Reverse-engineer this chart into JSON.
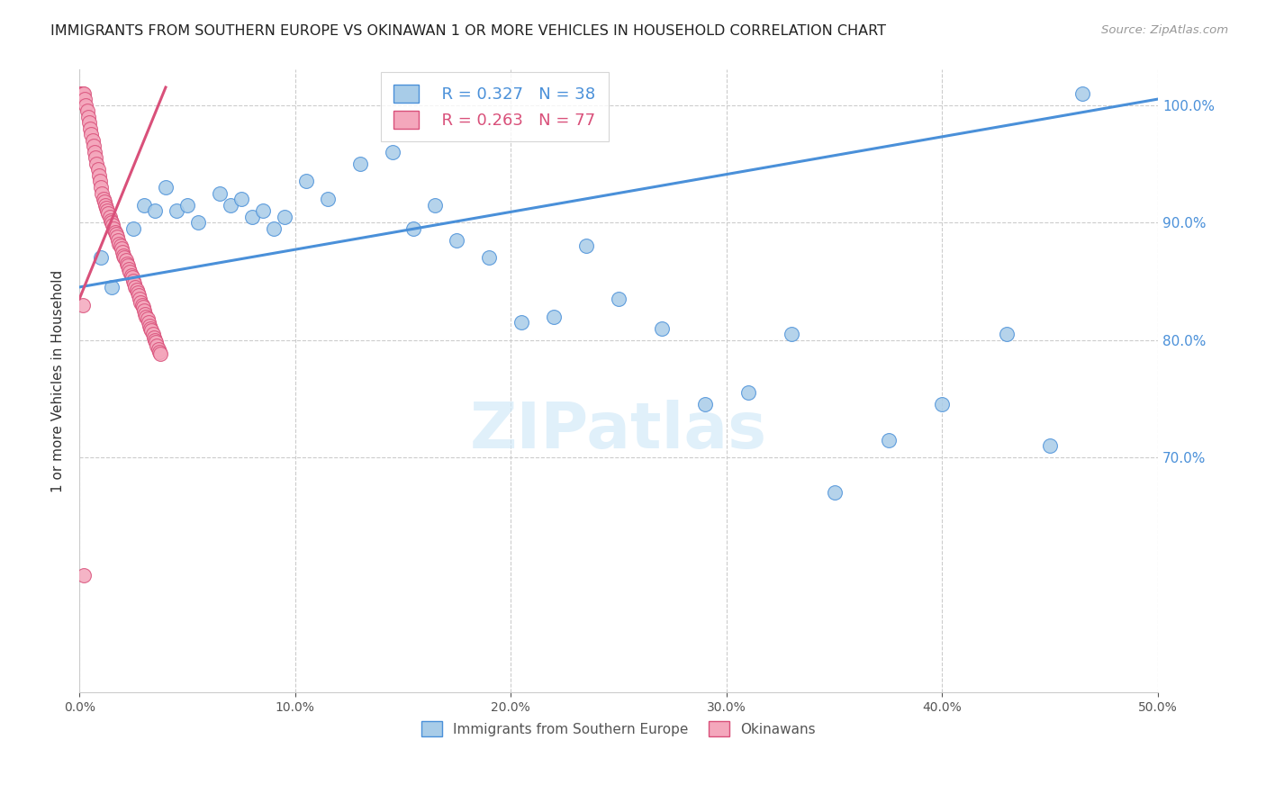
{
  "title": "IMMIGRANTS FROM SOUTHERN EUROPE VS OKINAWAN 1 OR MORE VEHICLES IN HOUSEHOLD CORRELATION CHART",
  "source": "Source: ZipAtlas.com",
  "ylabel": "1 or more Vehicles in Household",
  "x_min": 0.0,
  "x_max": 50.0,
  "y_min": 50.0,
  "y_max": 103.0,
  "y_ticks": [
    70.0,
    80.0,
    90.0,
    100.0
  ],
  "x_ticks": [
    0.0,
    10.0,
    20.0,
    30.0,
    40.0,
    50.0
  ],
  "blue_R": 0.327,
  "blue_N": 38,
  "pink_R": 0.263,
  "pink_N": 77,
  "blue_color": "#a8cce8",
  "pink_color": "#f4a7bc",
  "line_blue": "#4a90d9",
  "line_pink": "#d9507a",
  "watermark": "ZIPatlas",
  "blue_line_x0": 0.0,
  "blue_line_y0": 84.5,
  "blue_line_x1": 50.0,
  "blue_line_y1": 100.5,
  "pink_line_x0": 0.0,
  "pink_line_y0": 83.5,
  "pink_line_x1": 4.0,
  "pink_line_y1": 101.5,
  "blue_dots_x": [
    1.0,
    1.5,
    2.5,
    3.0,
    3.5,
    4.0,
    4.5,
    5.0,
    5.5,
    6.5,
    7.0,
    7.5,
    8.0,
    8.5,
    9.0,
    9.5,
    10.5,
    11.5,
    13.0,
    14.5,
    15.5,
    16.5,
    17.5,
    19.0,
    20.5,
    22.0,
    23.5,
    25.0,
    27.0,
    29.0,
    31.0,
    33.0,
    35.0,
    37.5,
    40.0,
    43.0,
    45.0,
    46.5
  ],
  "blue_dots_y": [
    87.0,
    84.5,
    89.5,
    91.5,
    91.0,
    93.0,
    91.0,
    91.5,
    90.0,
    92.5,
    91.5,
    92.0,
    90.5,
    91.0,
    89.5,
    90.5,
    93.5,
    92.0,
    95.0,
    96.0,
    89.5,
    91.5,
    88.5,
    87.0,
    81.5,
    82.0,
    88.0,
    83.5,
    81.0,
    74.5,
    75.5,
    80.5,
    67.0,
    71.5,
    74.5,
    80.5,
    71.0,
    101.0
  ],
  "pink_dots_x": [
    0.05,
    0.1,
    0.15,
    0.2,
    0.25,
    0.3,
    0.35,
    0.4,
    0.45,
    0.5,
    0.55,
    0.6,
    0.65,
    0.7,
    0.75,
    0.8,
    0.85,
    0.9,
    0.95,
    1.0,
    1.05,
    1.1,
    1.15,
    1.2,
    1.25,
    1.3,
    1.35,
    1.4,
    1.45,
    1.5,
    1.55,
    1.6,
    1.65,
    1.7,
    1.75,
    1.8,
    1.85,
    1.9,
    1.95,
    2.0,
    2.05,
    2.1,
    2.15,
    2.2,
    2.25,
    2.3,
    2.35,
    2.4,
    2.45,
    2.5,
    2.55,
    2.6,
    2.65,
    2.7,
    2.75,
    2.8,
    2.85,
    2.9,
    2.95,
    3.0,
    3.05,
    3.1,
    3.15,
    3.2,
    3.25,
    3.3,
    3.35,
    3.4,
    3.45,
    3.5,
    3.55,
    3.6,
    3.65,
    3.7,
    3.75,
    0.15,
    0.2
  ],
  "pink_dots_y": [
    101.0,
    101.0,
    101.0,
    101.0,
    100.5,
    100.0,
    99.5,
    99.0,
    98.5,
    98.0,
    97.5,
    97.0,
    96.5,
    96.0,
    95.5,
    95.0,
    94.5,
    94.0,
    93.5,
    93.0,
    92.5,
    92.0,
    91.8,
    91.5,
    91.2,
    91.0,
    90.8,
    90.5,
    90.2,
    90.0,
    89.8,
    89.5,
    89.2,
    89.0,
    88.8,
    88.5,
    88.2,
    88.0,
    87.8,
    87.5,
    87.2,
    87.0,
    86.8,
    86.5,
    86.3,
    86.0,
    85.8,
    85.5,
    85.3,
    85.0,
    84.8,
    84.5,
    84.3,
    84.0,
    83.8,
    83.5,
    83.2,
    83.0,
    82.8,
    82.5,
    82.2,
    82.0,
    81.8,
    81.5,
    81.2,
    81.0,
    80.8,
    80.5,
    80.2,
    80.0,
    79.8,
    79.5,
    79.2,
    79.0,
    78.8,
    83.0,
    60.0
  ]
}
